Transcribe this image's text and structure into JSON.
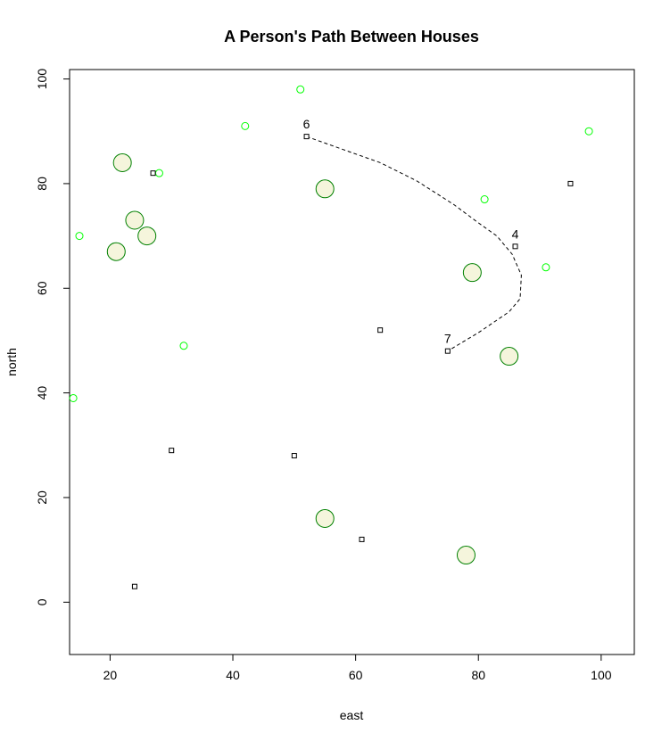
{
  "chart_data": {
    "type": "scatter",
    "title": "A Person's Path Between Houses",
    "xlabel": "east",
    "ylabel": "north",
    "xlim": [
      13.4,
      105.4
    ],
    "ylim": [
      -10,
      101.8
    ],
    "xticks": [
      20,
      40,
      60,
      80,
      100
    ],
    "yticks": [
      0,
      20,
      40,
      60,
      80,
      100
    ],
    "grid": false,
    "colors": {
      "large_fill": "#f5f5dc",
      "large_stroke": "#008000",
      "small_stroke": "#00ff00",
      "house_stroke": "#000000",
      "path": "#000000"
    },
    "large_circles": [
      {
        "x": 22,
        "y": 84
      },
      {
        "x": 24,
        "y": 73
      },
      {
        "x": 26,
        "y": 70
      },
      {
        "x": 21,
        "y": 67
      },
      {
        "x": 55,
        "y": 79
      },
      {
        "x": 79,
        "y": 63
      },
      {
        "x": 85,
        "y": 47
      },
      {
        "x": 55,
        "y": 16
      },
      {
        "x": 78,
        "y": 9
      }
    ],
    "small_circles": [
      {
        "x": 51,
        "y": 98
      },
      {
        "x": 42,
        "y": 91
      },
      {
        "x": 98,
        "y": 90
      },
      {
        "x": 28,
        "y": 82
      },
      {
        "x": 81,
        "y": 77
      },
      {
        "x": 15,
        "y": 70
      },
      {
        "x": 91,
        "y": 64
      },
      {
        "x": 32,
        "y": 49
      },
      {
        "x": 14,
        "y": 39
      }
    ],
    "houses": [
      {
        "x": 52,
        "y": 89,
        "label": "6"
      },
      {
        "x": 27,
        "y": 82,
        "label": ""
      },
      {
        "x": 95,
        "y": 80,
        "label": ""
      },
      {
        "x": 86,
        "y": 68,
        "label": "4"
      },
      {
        "x": 64,
        "y": 52,
        "label": ""
      },
      {
        "x": 75,
        "y": 48,
        "label": "7"
      },
      {
        "x": 30,
        "y": 29,
        "label": ""
      },
      {
        "x": 50,
        "y": 28,
        "label": ""
      },
      {
        "x": 61,
        "y": 12,
        "label": ""
      },
      {
        "x": 24,
        "y": 3,
        "label": ""
      }
    ],
    "path": [
      {
        "x": 52,
        "y": 89
      },
      {
        "x": 58,
        "y": 86.5
      },
      {
        "x": 64,
        "y": 84
      },
      {
        "x": 70,
        "y": 80.5
      },
      {
        "x": 76,
        "y": 76
      },
      {
        "x": 80,
        "y": 72.5
      },
      {
        "x": 83,
        "y": 70
      },
      {
        "x": 85.5,
        "y": 66.5
      },
      {
        "x": 87,
        "y": 62.5
      },
      {
        "x": 86.8,
        "y": 58
      },
      {
        "x": 85,
        "y": 55.5
      },
      {
        "x": 80,
        "y": 51.5
      },
      {
        "x": 75,
        "y": 48
      }
    ]
  }
}
